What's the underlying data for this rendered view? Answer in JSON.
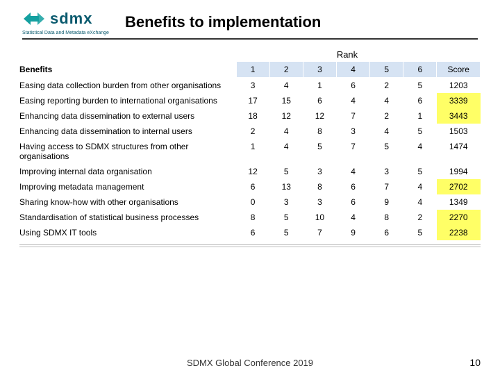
{
  "logo": {
    "text": "sdmx",
    "subtitle": "Statistical Data and Metadata eXchange",
    "icon_color": "#14a0a0",
    "text_color": "#0a5a6e"
  },
  "title": "Benefits to implementation",
  "rank_label": "Rank",
  "columns": {
    "benefits_header": "Benefits",
    "ranks": [
      "1",
      "2",
      "3",
      "4",
      "5",
      "6"
    ],
    "score": "Score"
  },
  "header_bg": "#d6e3f3",
  "highlight_bg": "#ffff66",
  "rows": [
    {
      "label": "Easing data collection burden from other organisations",
      "vals": [
        "3",
        "4",
        "1",
        "6",
        "2",
        "5"
      ],
      "score": "1203",
      "hl": false,
      "pre_header": true
    },
    {
      "label": "Easing reporting burden to international organisations",
      "vals": [
        "17",
        "15",
        "6",
        "4",
        "4",
        "6"
      ],
      "score": "3339",
      "hl": true
    },
    {
      "label": "Enhancing data dissemination to external users",
      "vals": [
        "18",
        "12",
        "12",
        "7",
        "2",
        "1"
      ],
      "score": "3443",
      "hl": true
    },
    {
      "label": "Enhancing data dissemination to internal users",
      "vals": [
        "2",
        "4",
        "8",
        "3",
        "4",
        "5"
      ],
      "score": "1503",
      "hl": false
    },
    {
      "label": "Having access to SDMX structures from other organisations",
      "vals": [
        "1",
        "4",
        "5",
        "7",
        "5",
        "4"
      ],
      "score": "1474",
      "hl": false
    },
    {
      "label": "Improving internal data organisation",
      "vals": [
        "12",
        "5",
        "3",
        "4",
        "3",
        "5"
      ],
      "score": "1994",
      "hl": false
    },
    {
      "label": "Improving metadata management",
      "vals": [
        "6",
        "13",
        "8",
        "6",
        "7",
        "4"
      ],
      "score": "2702",
      "hl": true
    },
    {
      "label": "Sharing know-how with other organisations",
      "vals": [
        "0",
        "3",
        "3",
        "6",
        "9",
        "4"
      ],
      "score": "1349",
      "hl": false
    },
    {
      "label": "Standardisation of statistical business processes",
      "vals": [
        "8",
        "5",
        "10",
        "4",
        "8",
        "2"
      ],
      "score": "2270",
      "hl": true
    },
    {
      "label": "Using SDMX IT tools",
      "vals": [
        "6",
        "5",
        "7",
        "9",
        "6",
        "5"
      ],
      "score": "2238",
      "hl": true
    }
  ],
  "footer": "SDMX Global Conference 2019",
  "page_number": "10"
}
